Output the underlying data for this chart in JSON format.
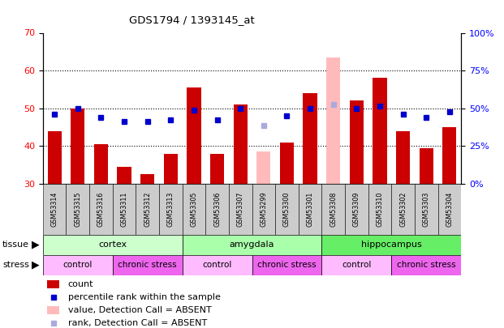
{
  "title": "GDS1794 / 1393145_at",
  "samples": [
    "GSM53314",
    "GSM53315",
    "GSM53316",
    "GSM53311",
    "GSM53312",
    "GSM53313",
    "GSM53305",
    "GSM53306",
    "GSM53307",
    "GSM53299",
    "GSM53300",
    "GSM53301",
    "GSM53308",
    "GSM53309",
    "GSM53310",
    "GSM53302",
    "GSM53303",
    "GSM53304"
  ],
  "count_values": [
    44,
    50,
    40.5,
    34.5,
    32.5,
    38,
    55.5,
    38,
    51,
    null,
    41,
    54,
    null,
    52,
    58,
    44,
    39.5,
    45
  ],
  "count_absent": [
    null,
    null,
    null,
    null,
    null,
    null,
    null,
    null,
    null,
    38.5,
    null,
    null,
    63.5,
    null,
    null,
    null,
    null,
    null
  ],
  "percentile_values": [
    48.5,
    50,
    47.5,
    46.5,
    46.5,
    47,
    49.5,
    47,
    50,
    null,
    48,
    50,
    null,
    50,
    50.5,
    48.5,
    47.5,
    49
  ],
  "percentile_absent": [
    null,
    null,
    null,
    null,
    null,
    null,
    null,
    null,
    null,
    45.5,
    null,
    null,
    51,
    null,
    null,
    null,
    null,
    null
  ],
  "ylim_left": [
    30,
    70
  ],
  "ylim_right": [
    0,
    100
  ],
  "yticks_left": [
    30,
    40,
    50,
    60,
    70
  ],
  "yticks_right": [
    0,
    25,
    50,
    75,
    100
  ],
  "tissue_groups": [
    {
      "label": "cortex",
      "start": 0,
      "end": 5,
      "color": "#ccffcc"
    },
    {
      "label": "amygdala",
      "start": 6,
      "end": 11,
      "color": "#aaffaa"
    },
    {
      "label": "hippocampus",
      "start": 12,
      "end": 17,
      "color": "#66ee66"
    }
  ],
  "stress_groups": [
    {
      "label": "control",
      "start": 0,
      "end": 2,
      "color": "#ffbbff"
    },
    {
      "label": "chronic stress",
      "start": 3,
      "end": 5,
      "color": "#ee66ee"
    },
    {
      "label": "control",
      "start": 6,
      "end": 8,
      "color": "#ffbbff"
    },
    {
      "label": "chronic stress",
      "start": 9,
      "end": 11,
      "color": "#ee66ee"
    },
    {
      "label": "control",
      "start": 12,
      "end": 14,
      "color": "#ffbbff"
    },
    {
      "label": "chronic stress",
      "start": 15,
      "end": 17,
      "color": "#ee66ee"
    }
  ],
  "bar_width": 0.6,
  "count_color": "#cc0000",
  "count_absent_color": "#ffbbbb",
  "percentile_color": "#0000cc",
  "percentile_absent_color": "#aaaadd",
  "chart_bg": "#ffffff",
  "label_bg": "#cccccc"
}
